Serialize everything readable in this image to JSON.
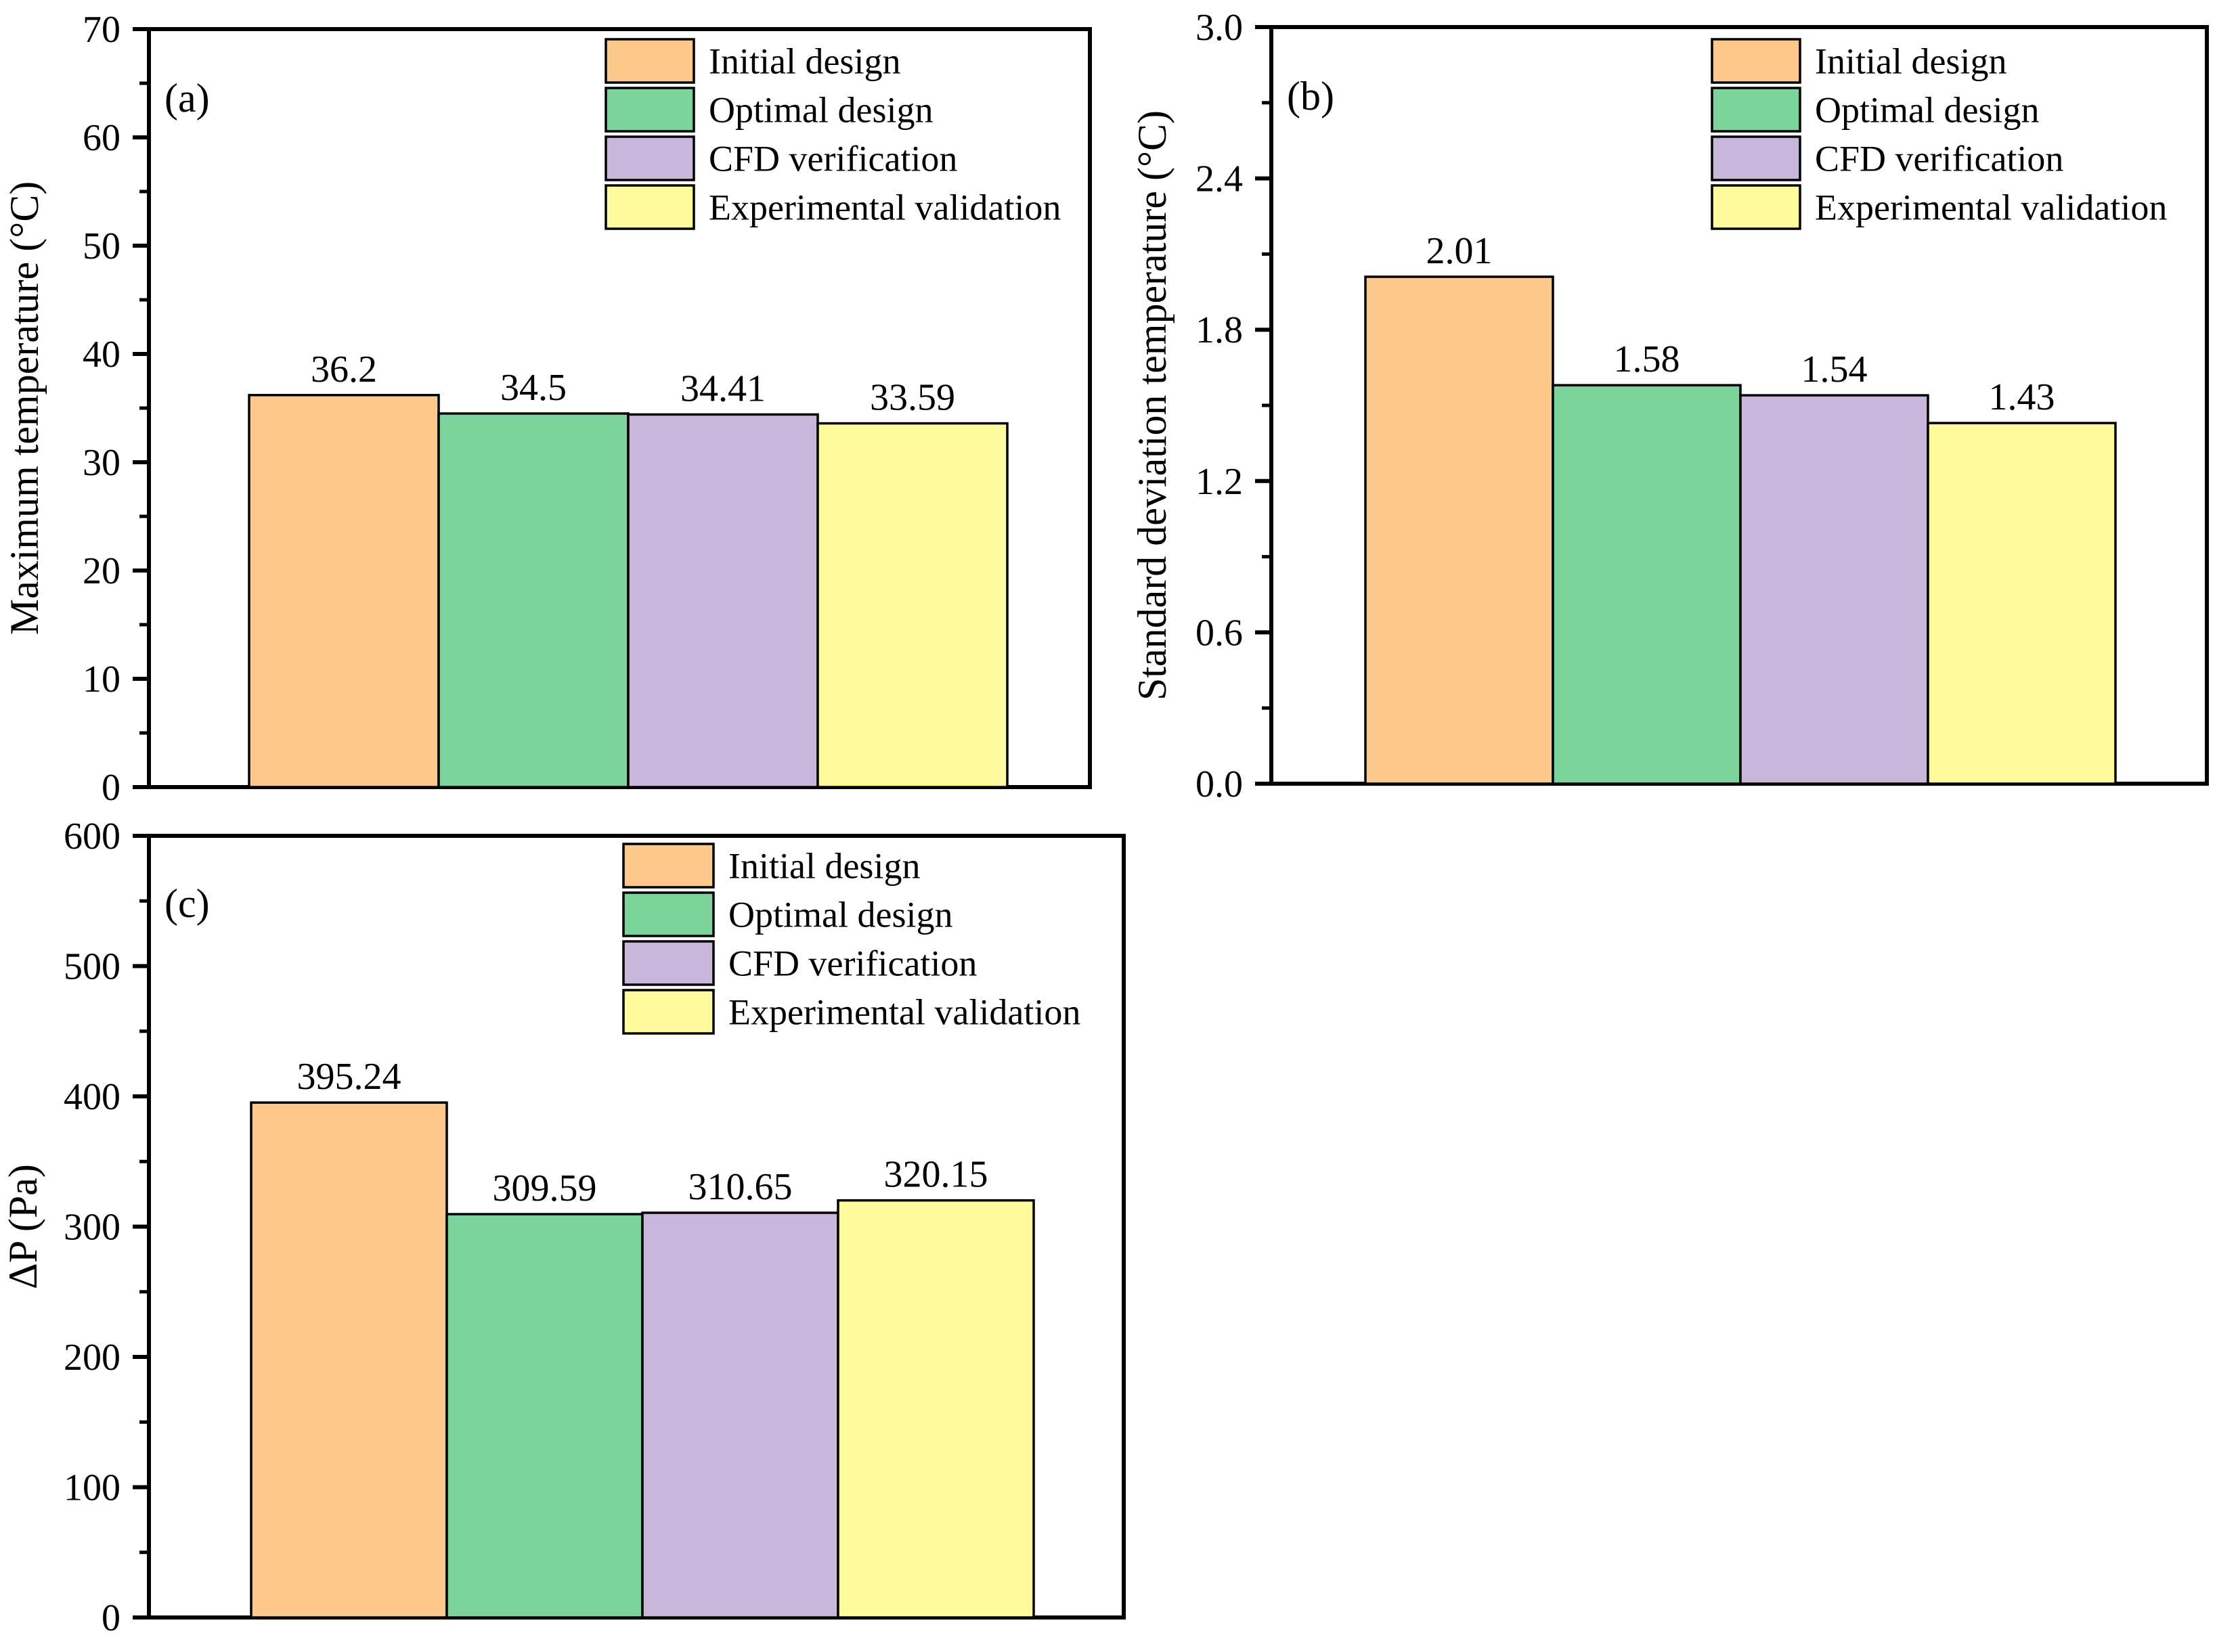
{
  "figure": {
    "background": "#ffffff",
    "axis_color": "#000000",
    "series": [
      {
        "name": "Initial design",
        "color": "#FCC88C"
      },
      {
        "name": "Optimal design",
        "color": "#7CD49C"
      },
      {
        "name": "CFD verification",
        "color": "#C9B6DB"
      },
      {
        "name": "Experimental validation",
        "color": "#FDFB9D"
      }
    ]
  },
  "chart_data": [
    {
      "type": "bar",
      "panel_label": "(a)",
      "title": "",
      "xlabel": "",
      "ylabel": "Maximum temperature (°C)",
      "categories": [
        "Initial design",
        "Optimal design",
        "CFD verification",
        "Experimental validation"
      ],
      "values": [
        36.2,
        34.5,
        34.41,
        33.59
      ],
      "value_labels": [
        "36.2",
        "34.5",
        "34.41",
        "33.59"
      ],
      "ylim": [
        0,
        70
      ],
      "yticks": [
        0,
        10,
        20,
        30,
        40,
        50,
        60,
        70
      ],
      "ytick_labels": [
        "0",
        "10",
        "20",
        "30",
        "40",
        "50",
        "60",
        "70"
      ],
      "grid": false,
      "legend_position": "top-right-inside",
      "legend": [
        "Initial design",
        "Optimal design",
        "CFD verification",
        "Experimental validation"
      ]
    },
    {
      "type": "bar",
      "panel_label": "(b)",
      "title": "",
      "xlabel": "",
      "ylabel": "Standard deviation temperature (°C)",
      "categories": [
        "Initial design",
        "Optimal design",
        "CFD verification",
        "Experimental validation"
      ],
      "values": [
        2.01,
        1.58,
        1.54,
        1.43
      ],
      "value_labels": [
        "2.01",
        "1.58",
        "1.54",
        "1.43"
      ],
      "ylim": [
        0,
        3.0
      ],
      "yticks": [
        0,
        0.6,
        1.2,
        1.8,
        2.4,
        3.0
      ],
      "ytick_labels": [
        "0.0",
        "0.6",
        "1.2",
        "1.8",
        "2.4",
        "3.0"
      ],
      "grid": false,
      "legend_position": "top-right-inside",
      "legend": [
        "Initial design",
        "Optimal design",
        "CFD verification",
        "Experimental validation"
      ]
    },
    {
      "type": "bar",
      "panel_label": "(c)",
      "title": "",
      "xlabel": "",
      "ylabel": "ΔP (Pa)",
      "categories": [
        "Initial design",
        "Optimal design",
        "CFD verification",
        "Experimental validation"
      ],
      "values": [
        395.24,
        309.59,
        310.65,
        320.15
      ],
      "value_labels": [
        "395.24",
        "309.59",
        "310.65",
        "320.15"
      ],
      "ylim": [
        0,
        600
      ],
      "yticks": [
        0,
        100,
        200,
        300,
        400,
        500,
        600
      ],
      "ytick_labels": [
        "0",
        "100",
        "200",
        "300",
        "400",
        "500",
        "600"
      ],
      "grid": false,
      "legend_position": "top-center-inside",
      "legend": [
        "Initial design",
        "Optimal design",
        "CFD verification",
        "Experimental validation"
      ]
    }
  ]
}
